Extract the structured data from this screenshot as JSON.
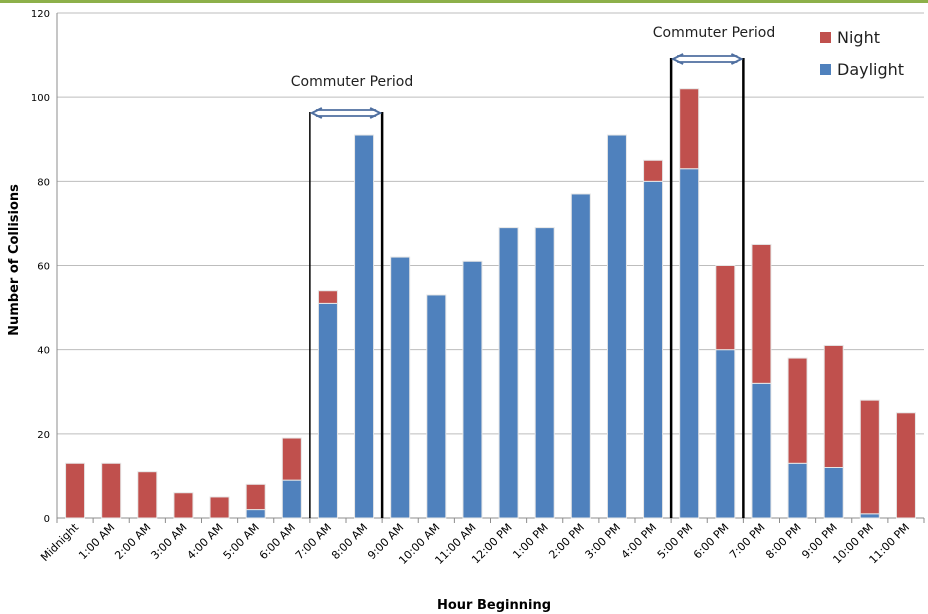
{
  "chart_data": {
    "type": "bar",
    "stacked": true,
    "title": "",
    "xlabel": "Hour Beginning",
    "ylabel": "Number of Collisions",
    "ylim": [
      0,
      120
    ],
    "yticks": [
      0,
      20,
      40,
      60,
      80,
      100,
      120
    ],
    "grid": true,
    "legend_position": "top-right",
    "categories": [
      "Midnight",
      "1:00 AM",
      "2:00 AM",
      "3:00 AM",
      "4:00 AM",
      "5:00 AM",
      "6:00 AM",
      "7:00 AM",
      "8:00 AM",
      "9:00 AM",
      "10:00 AM",
      "11:00 AM",
      "12:00 PM",
      "1:00 PM",
      "2:00 PM",
      "3:00 PM",
      "4:00 PM",
      "5:00 PM",
      "6:00 PM",
      "7:00 PM",
      "8:00 PM",
      "9:00 PM",
      "10:00 PM",
      "11:00 PM"
    ],
    "series": [
      {
        "name": "Daylight",
        "color": "#4f81bd",
        "values": [
          0,
          0,
          0,
          0,
          0,
          2,
          9,
          51,
          91,
          62,
          53,
          61,
          69,
          69,
          77,
          91,
          80,
          83,
          40,
          32,
          13,
          12,
          1,
          0
        ]
      },
      {
        "name": "Night",
        "color": "#c0504d",
        "values": [
          13,
          13,
          11,
          6,
          5,
          6,
          10,
          3,
          0,
          0,
          0,
          0,
          0,
          0,
          0,
          0,
          5,
          19,
          20,
          33,
          25,
          29,
          27,
          25
        ]
      }
    ],
    "legend": [
      "Night",
      "Daylight"
    ],
    "annotations": [
      {
        "text": "Commuter Period",
        "from": "7:00 AM",
        "to": "8:00 AM"
      },
      {
        "text": "Commuter Period",
        "from": "5:00 PM",
        "to": "6:00 PM"
      }
    ]
  }
}
